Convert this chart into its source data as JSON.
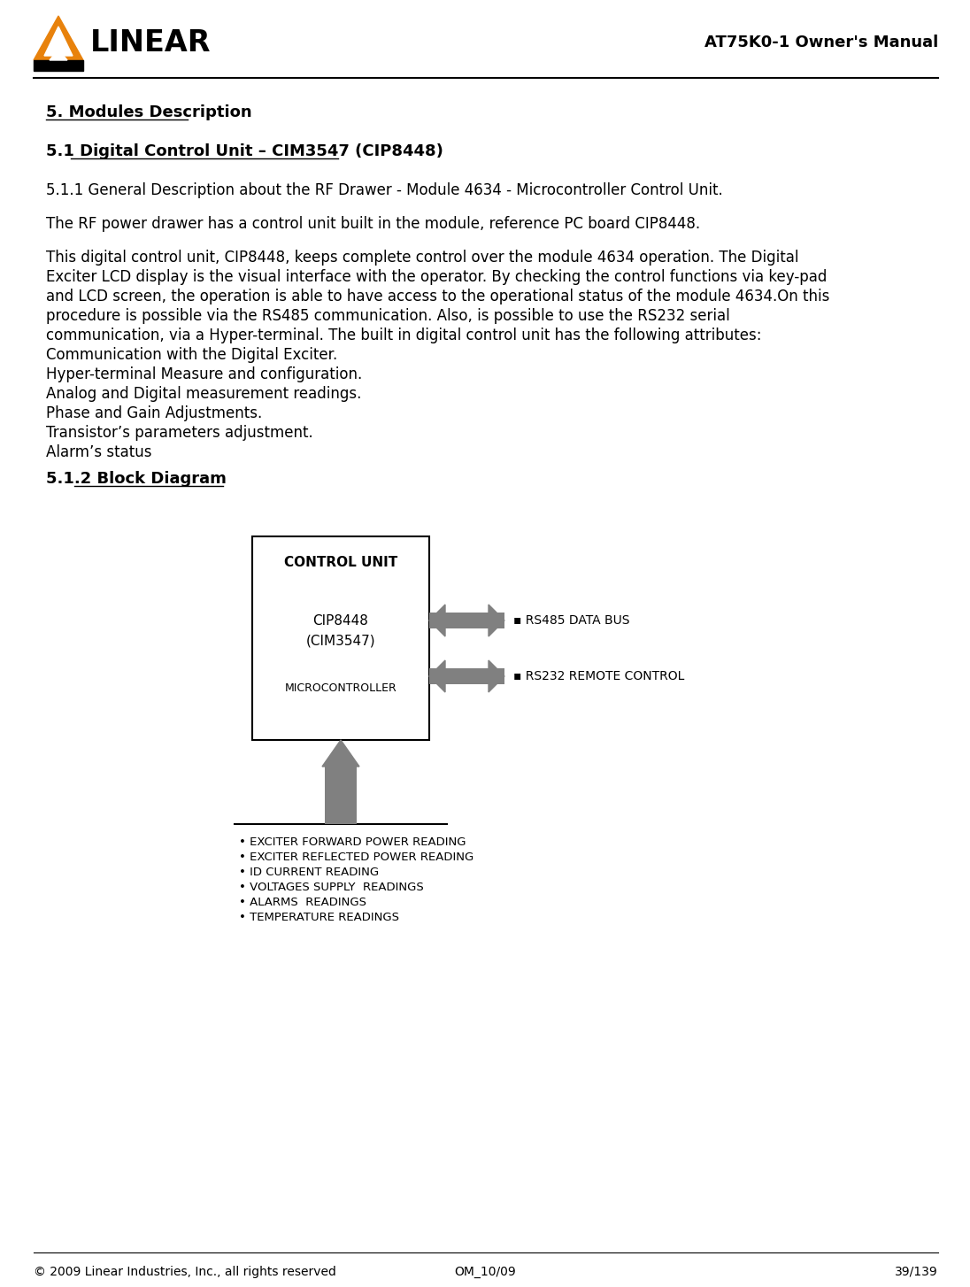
{
  "page_title": "AT75K0-1 Owner's Manual",
  "footer_left": "© 2009 Linear Industries, Inc., all rights reserved",
  "footer_center": "OM_10/09",
  "footer_right": "39/139",
  "heading1": "5. Modules Description",
  "heading2": "5.1 Digital Control Unit – CIM3547 (CIP8448)",
  "heading3": "5.1.1 General Description about the RF Drawer - Module 4634 - Microcontroller Control Unit.",
  "para1": "The RF power drawer has a control unit built in the module, reference PC board CIP8448.",
  "para2_lines": [
    "This digital control unit, CIP8448, keeps complete control over the module 4634 operation. The Digital",
    "Exciter LCD display is the visual interface with the operator. By checking the control functions via key-pad",
    "and LCD screen, the operation is able to have access to the operational status of the module 4634.On this",
    "procedure is possible via the RS485 communication. Also, is possible to use the RS232 serial",
    "communication, via a Hyper-terminal. The built in digital control unit has the following attributes:",
    "Communication with the Digital Exciter.",
    "Hyper-terminal Measure and configuration.",
    "Analog and Digital measurement readings.",
    "Phase and Gain Adjustments.",
    "Transistor’s parameters adjustment.",
    "Alarm’s status"
  ],
  "heading4": "5.1.2 Block Diagram",
  "block_title": "CONTROL UNIT",
  "block_subtitle1": "CIP8448",
  "block_subtitle2": "(CIM3547)",
  "block_subtitle3": "MICROCONTROLLER",
  "arrow_label1": "▪ RS485 DATA BUS",
  "arrow_label2": "▪ RS232 REMOTE CONTROL",
  "bottom_labels": [
    "• EXCITER FORWARD POWER READING",
    "• EXCITER REFLECTED POWER READING",
    "• ID CURRENT READING",
    "• VOLTAGES SUPPLY  READINGS",
    "• ALARMS  READINGS",
    "• TEMPERATURE READINGS"
  ],
  "bg_color": "#ffffff",
  "text_color": "#000000",
  "box_border_color": "#000000",
  "arrow_color": "#808080",
  "logo_orange": "#E8820C",
  "linear_text": "LINEAR"
}
